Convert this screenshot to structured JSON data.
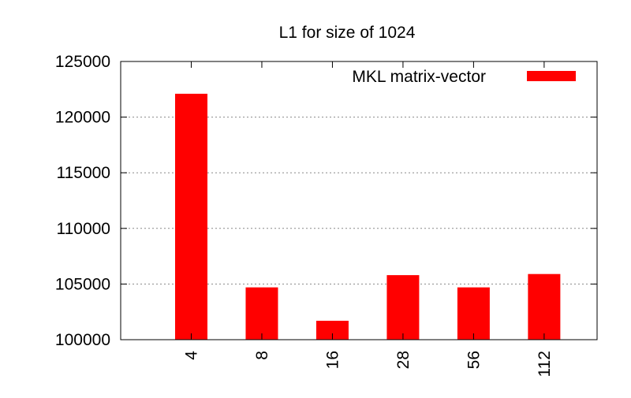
{
  "chart_data": {
    "type": "bar",
    "title": "L1 for size of 1024",
    "xlabel": "",
    "ylabel": "",
    "categories": [
      "4",
      "8",
      "16",
      "28",
      "56",
      "112"
    ],
    "series": [
      {
        "name": "MKL matrix-vector",
        "color": "#ff0000",
        "values": [
          122100,
          104700,
          101700,
          105800,
          104700,
          105900
        ]
      }
    ],
    "ylim": [
      100000,
      125000
    ],
    "yticks": [
      100000,
      105000,
      110000,
      115000,
      120000,
      125000
    ],
    "grid": true,
    "legend_position": "top-right"
  }
}
